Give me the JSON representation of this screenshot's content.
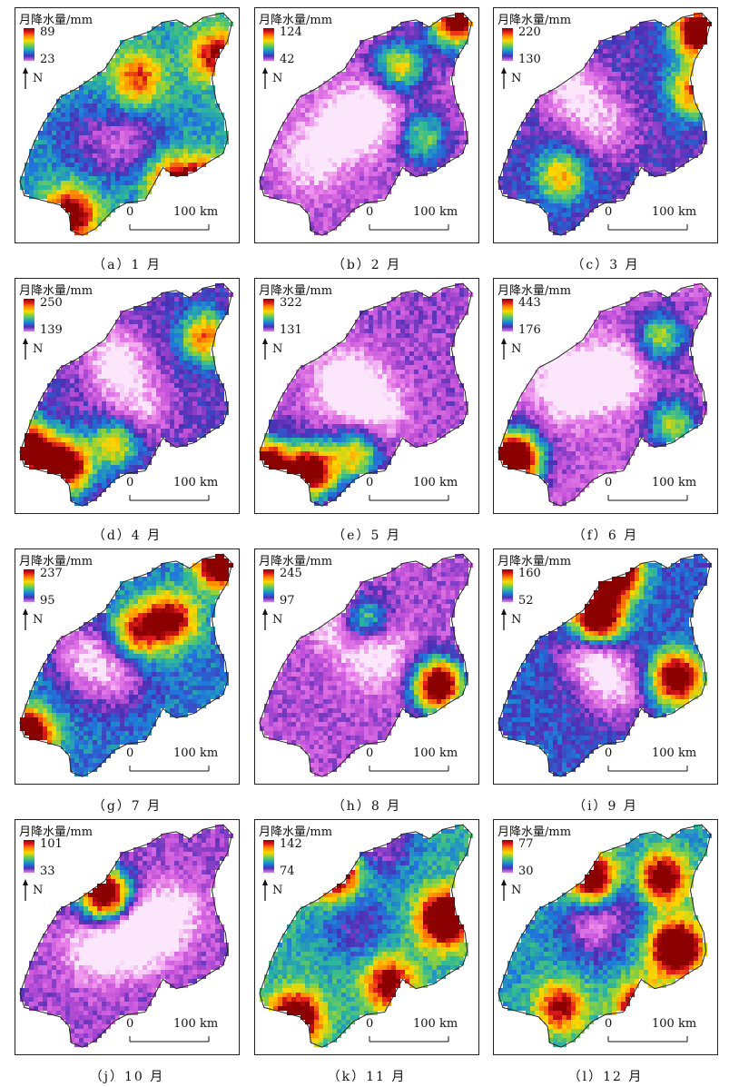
{
  "legend_title": "月降水量/mm",
  "north_label": "N",
  "scale_zero": "0",
  "scale_distance": "100 km",
  "colormap": [
    "#8b0000",
    "#e31a1c",
    "#ff8c00",
    "#ffd700",
    "#8cd23c",
    "#2eb89a",
    "#1e78dc",
    "#4b2fb4",
    "#c04fd8",
    "#e880e8",
    "#fbe6fb"
  ],
  "panels": [
    {
      "caption": "（a）1 月",
      "max": "89",
      "min": "23",
      "level": 0.45,
      "hot": [
        [
          0.85,
          0.78,
          0.95
        ],
        [
          0.25,
          0.88,
          0.7
        ],
        [
          0.7,
          0.75,
          0.55
        ],
        [
          0.55,
          0.3,
          0.45
        ],
        [
          0.9,
          0.2,
          0.55
        ]
      ],
      "cold": [
        [
          0.45,
          0.6,
          0.35
        ],
        [
          0.3,
          0.55,
          0.3
        ],
        [
          0.55,
          0.55,
          0.3
        ]
      ]
    },
    {
      "caption": "（b）2 月",
      "max": "124",
      "min": "42",
      "level": 0.2,
      "hot": [
        [
          0.9,
          0.05,
          0.95
        ],
        [
          0.65,
          0.25,
          0.5
        ],
        [
          0.75,
          0.55,
          0.4
        ]
      ],
      "cold": [
        [
          0.4,
          0.5,
          0.7
        ],
        [
          0.25,
          0.65,
          0.5
        ],
        [
          0.55,
          0.45,
          0.5
        ]
      ]
    },
    {
      "caption": "（c）3 月",
      "max": "220",
      "min": "130",
      "level": 0.3,
      "hot": [
        [
          0.92,
          0.1,
          0.95
        ],
        [
          0.9,
          0.35,
          0.6
        ],
        [
          0.3,
          0.72,
          0.45
        ]
      ],
      "cold": [
        [
          0.35,
          0.35,
          0.7
        ],
        [
          0.5,
          0.5,
          0.5
        ]
      ]
    },
    {
      "caption": "（d）4 月",
      "max": "250",
      "min": "139",
      "level": 0.28,
      "hot": [
        [
          0.05,
          0.72,
          1.0
        ],
        [
          0.22,
          0.8,
          0.95
        ],
        [
          0.85,
          0.25,
          0.55
        ],
        [
          0.45,
          0.7,
          0.45
        ]
      ],
      "cold": [
        [
          0.45,
          0.35,
          0.75
        ],
        [
          0.55,
          0.55,
          0.55
        ]
      ]
    },
    {
      "caption": "（e）5 月",
      "max": "322",
      "min": "131",
      "level": 0.22,
      "hot": [
        [
          0.05,
          0.8,
          1.0
        ],
        [
          0.25,
          0.82,
          0.9
        ],
        [
          0.45,
          0.75,
          0.5
        ]
      ],
      "cold": [
        [
          0.4,
          0.45,
          0.85
        ],
        [
          0.55,
          0.55,
          0.55
        ]
      ]
    },
    {
      "caption": "（f）6 月",
      "max": "443",
      "min": "176",
      "level": 0.18,
      "hot": [
        [
          0.05,
          0.8,
          1.0
        ],
        [
          0.12,
          0.75,
          0.6
        ],
        [
          0.75,
          0.25,
          0.45
        ],
        [
          0.8,
          0.62,
          0.45
        ]
      ],
      "cold": [
        [
          0.35,
          0.45,
          0.9
        ],
        [
          0.55,
          0.4,
          0.6
        ]
      ]
    },
    {
      "caption": "（g）7 月",
      "max": "237",
      "min": "95",
      "level": 0.4,
      "hot": [
        [
          0.05,
          0.8,
          1.0
        ],
        [
          0.92,
          0.05,
          0.95
        ],
        [
          0.7,
          0.3,
          0.65
        ],
        [
          0.55,
          0.35,
          0.55
        ]
      ],
      "cold": [
        [
          0.3,
          0.45,
          0.75
        ],
        [
          0.45,
          0.55,
          0.6
        ]
      ]
    },
    {
      "caption": "（h）8 月",
      "max": "245",
      "min": "97",
      "level": 0.2,
      "hot": [
        [
          0.82,
          0.58,
          1.0
        ],
        [
          0.48,
          0.3,
          0.6
        ]
      ],
      "cold": [
        [
          0.4,
          0.3,
          0.75
        ],
        [
          0.55,
          0.45,
          0.6
        ]
      ]
    },
    {
      "caption": "（i）9 月",
      "max": "160",
      "min": "52",
      "level": 0.35,
      "hot": [
        [
          0.55,
          0.1,
          0.95
        ],
        [
          0.47,
          0.3,
          1.0
        ],
        [
          0.82,
          0.55,
          0.85
        ],
        [
          0.3,
          0.15,
          0.55
        ]
      ],
      "cold": [
        [
          0.45,
          0.45,
          0.85
        ],
        [
          0.55,
          0.6,
          0.6
        ]
      ]
    },
    {
      "caption": "（j）10 月",
      "max": "101",
      "min": "33",
      "level": 0.22,
      "hot": [
        [
          0.4,
          0.32,
          1.0
        ],
        [
          0.25,
          0.15,
          0.55
        ]
      ],
      "cold": [
        [
          0.55,
          0.5,
          0.9
        ],
        [
          0.35,
          0.55,
          0.6
        ],
        [
          0.7,
          0.4,
          0.6
        ]
      ]
    },
    {
      "caption": "（k）11 月",
      "max": "142",
      "min": "74",
      "level": 0.48,
      "hot": [
        [
          0.85,
          0.42,
          0.95
        ],
        [
          0.18,
          0.85,
          0.85
        ],
        [
          0.35,
          0.22,
          0.85
        ],
        [
          0.6,
          0.7,
          0.6
        ]
      ],
      "cold": [
        [
          0.55,
          0.08,
          0.75
        ],
        [
          0.45,
          0.45,
          0.45
        ]
      ]
    },
    {
      "caption": "（l）12 月",
      "max": "77",
      "min": "30",
      "level": 0.45,
      "hot": [
        [
          0.82,
          0.55,
          1.0
        ],
        [
          0.45,
          0.25,
          0.8
        ],
        [
          0.75,
          0.25,
          0.75
        ],
        [
          0.65,
          0.8,
          0.65
        ],
        [
          0.3,
          0.8,
          0.55
        ]
      ],
      "cold": [
        [
          0.45,
          0.45,
          0.7
        ],
        [
          0.6,
          0.3,
          0.5
        ]
      ]
    }
  ]
}
